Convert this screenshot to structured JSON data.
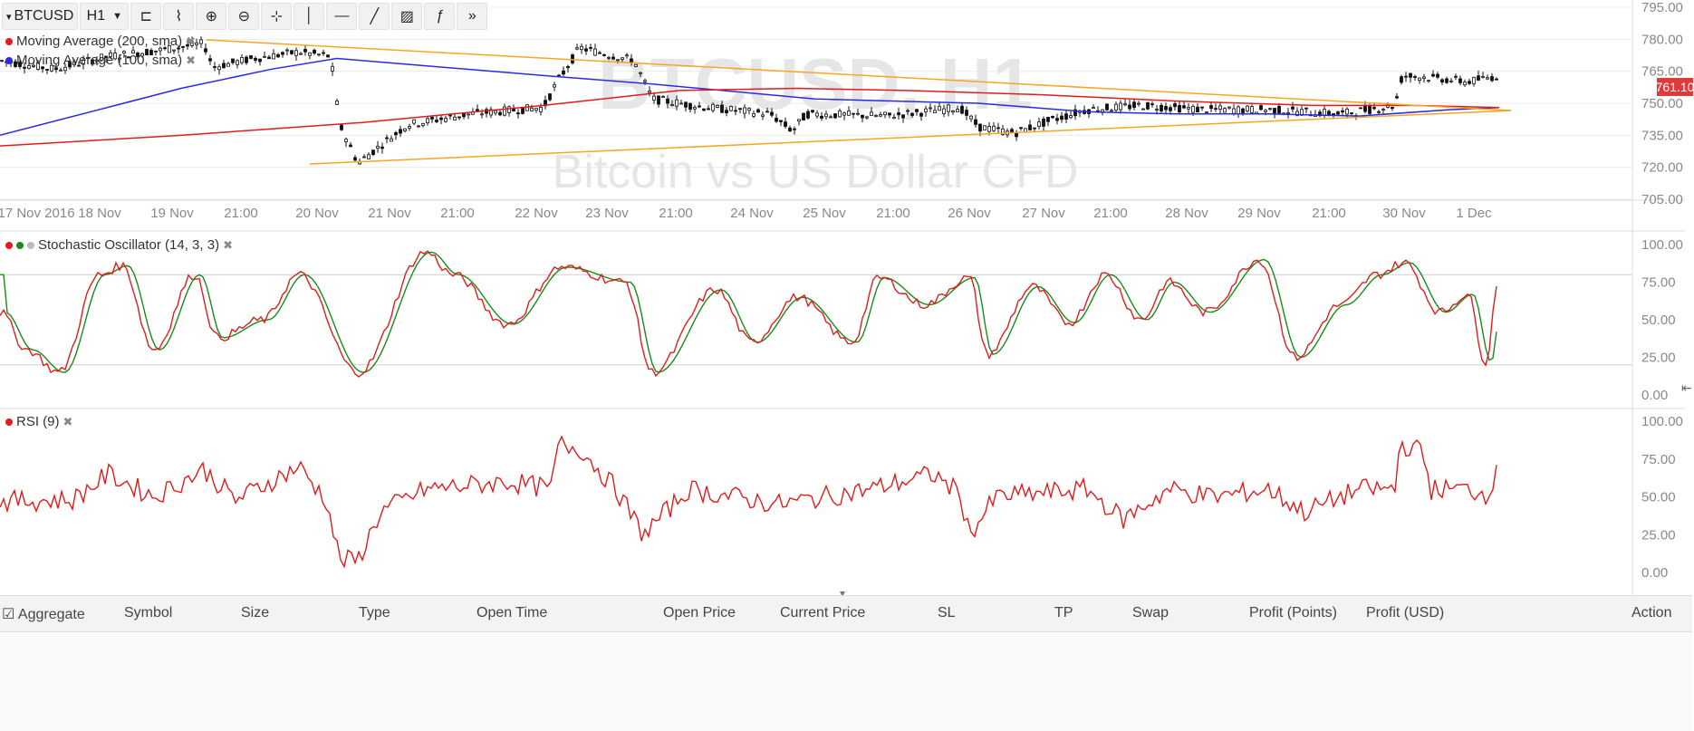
{
  "toolbar": {
    "symbol": "BTCUSD",
    "timeframe": "H1",
    "tools": [
      {
        "icon": "bars-icon",
        "glyph": "⊏"
      },
      {
        "icon": "add-indicator-icon",
        "glyph": "⌇"
      },
      {
        "icon": "zoom-in-icon",
        "glyph": "⊕"
      },
      {
        "icon": "zoom-out-icon",
        "glyph": "⊖"
      },
      {
        "icon": "crosshair-icon",
        "glyph": "⊹"
      },
      {
        "icon": "vertical-line-icon",
        "glyph": "│"
      },
      {
        "icon": "horizontal-line-icon",
        "glyph": "—"
      },
      {
        "icon": "trend-line-icon",
        "glyph": "╱"
      },
      {
        "icon": "fibonacci-icon",
        "glyph": "▨"
      },
      {
        "icon": "function-icon",
        "glyph": "ƒ"
      },
      {
        "icon": "more-icon",
        "glyph": "»"
      }
    ]
  },
  "colors": {
    "ma200": "#e31b1b",
    "ma100": "#2a2ae6",
    "trend": "#f5a623",
    "stoch_k": "#e31b1b",
    "stoch_d": "#1a8a1a",
    "rsi": "#e31b1b",
    "candle": "#111111",
    "grid": "#ececec",
    "price_tag": "#e03b3b"
  },
  "price_panel": {
    "legend": [
      {
        "label": "Moving Average (200, sma)",
        "color": "#e31b1b"
      },
      {
        "label": "Moving Average (100, sma)",
        "color": "#2a2ae6"
      }
    ],
    "watermark_symbol": "BTCUSD, H1",
    "watermark_name": "Bitcoin vs US Dollar CFD",
    "current_price": "761.10",
    "y_ticks": [
      "795.00",
      "780.00",
      "765.00",
      "750.00",
      "735.00",
      "720.00",
      "705.00"
    ],
    "x_ticks": [
      "17 Nov 2016",
      "18 Nov",
      "19 Nov",
      "21:00",
      "20 Nov",
      "21 Nov",
      "21:00",
      "22 Nov",
      "23 Nov",
      "21:00",
      "24 Nov",
      "25 Nov",
      "21:00",
      "26 Nov",
      "27 Nov",
      "21:00",
      "28 Nov",
      "29 Nov",
      "21:00",
      "30 Nov",
      "1 Dec"
    ]
  },
  "stoch_panel": {
    "title": "Stochastic Oscillator (14, 3, 3)",
    "y_ticks": [
      "100.00",
      "75.00",
      "50.00",
      "25.00",
      "0.00"
    ],
    "levels": [
      80,
      20
    ]
  },
  "rsi_panel": {
    "title": "RSI (9)",
    "y_ticks": [
      "100.00",
      "75.00",
      "50.00",
      "25.00",
      "0.00"
    ]
  },
  "positions_table": {
    "aggregate_label": "Aggregate",
    "columns": [
      "Symbol",
      "Size",
      "Type",
      "Open Time",
      "Open Price",
      "Current Price",
      "SL",
      "TP",
      "Swap",
      "Profit (Points)",
      "Profit (USD)",
      "Action"
    ],
    "rows": []
  }
}
